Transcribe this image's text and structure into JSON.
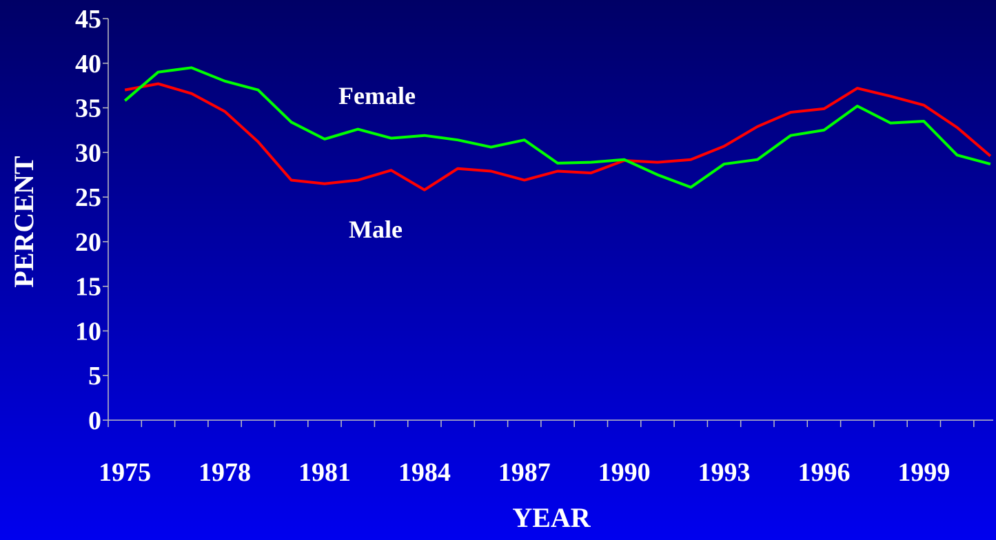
{
  "chart_data": {
    "type": "line",
    "xlabel": "YEAR",
    "ylabel": "PERCENT",
    "categories": [
      "1975",
      null,
      null,
      "1978",
      null,
      null,
      "1981",
      null,
      null,
      "1984",
      null,
      null,
      "1987",
      null,
      null,
      "1990",
      null,
      null,
      "1993",
      null,
      null,
      "1996",
      null,
      null,
      "1999",
      null,
      null
    ],
    "series": [
      {
        "name": "Male",
        "color": "#ff0000",
        "values": [
          37.0,
          37.7,
          36.6,
          34.6,
          31.2,
          26.9,
          26.5,
          26.9,
          28.0,
          25.8,
          28.2,
          27.9,
          26.9,
          27.9,
          27.7,
          29.1,
          28.9,
          29.2,
          30.7,
          32.9,
          34.5,
          34.9,
          37.2,
          36.3,
          35.3,
          32.8,
          29.6
        ]
      },
      {
        "name": "Female",
        "color": "#00ff00",
        "values": [
          35.8,
          39.0,
          39.5,
          38.0,
          37.0,
          33.4,
          31.5,
          32.6,
          31.6,
          31.9,
          31.4,
          30.6,
          31.4,
          28.8,
          28.9,
          29.2,
          27.5,
          26.1,
          28.7,
          29.2,
          31.9,
          32.5,
          35.2,
          33.3,
          33.5,
          29.7,
          28.7
        ]
      }
    ],
    "ylim": [
      0,
      45
    ],
    "yticks": [
      0,
      5,
      10,
      15,
      20,
      25,
      30,
      35,
      40,
      45
    ]
  }
}
